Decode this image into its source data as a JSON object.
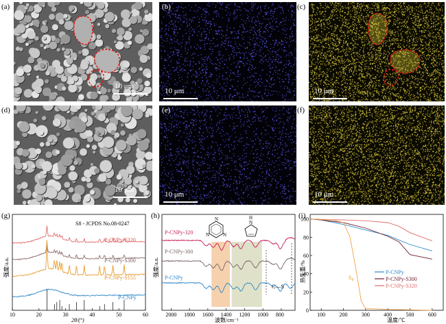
{
  "panel_labels": [
    "(a)",
    "(b)",
    "(c)",
    "(d)",
    "(e)",
    "(f)",
    "(g)",
    "(h)",
    "(i)"
  ],
  "scale_text": "10 μm",
  "colors": {
    "nitrogen_dots": "#5c59f0",
    "sulfur_dots": "#d7c73a",
    "highlight": "#e6140f"
  },
  "chart_data": [
    {
      "type": "line",
      "panel": "(g)",
      "ylabel": "强度/a.u.",
      "xlabel": "2θ/(°)",
      "x_ticks": [
        "10",
        "20",
        "30",
        "40",
        "50",
        "60"
      ],
      "xlim": [
        10,
        60
      ],
      "annotation": "S8 - JCPDS No.08-0247",
      "series": [
        {
          "name": "P-CNPy-S320",
          "color": "#e46a6a"
        },
        {
          "name": "P-CNPy-S300",
          "color": "#8b6a6a"
        },
        {
          "name": "P-CNPy-S155",
          "color": "#e99a2c"
        },
        {
          "name": "P-CNPy",
          "color": "#2b86c8"
        }
      ],
      "reference_peaks_2theta": [
        23.0,
        25.8,
        26.7,
        27.8,
        28.6,
        31.4,
        34.1,
        37.0,
        42.8,
        44.6,
        47.8,
        52.0
      ]
    },
    {
      "type": "line",
      "panel": "(h)",
      "ylabel": "强度/a.u.",
      "xlabel": "波数/cm⁻¹",
      "x_ticks": [
        "2000",
        "1800",
        "1600",
        "1400",
        "1200",
        "1000",
        "800"
      ],
      "xlim": [
        2100,
        650
      ],
      "series": [
        {
          "name": "P-CNPy-320",
          "color": "#c81e5a"
        },
        {
          "name": "P-CNPy-300",
          "color": "#7a6565"
        },
        {
          "name": "P-CNPy",
          "color": "#2b86c8"
        }
      ],
      "annotation": "C—S",
      "bands": [
        {
          "from": 1560,
          "to": 1360,
          "color": "#f5c9a0"
        },
        {
          "from": 1340,
          "to": 1010,
          "color": "#d9dcbf"
        }
      ]
    },
    {
      "type": "line",
      "panel": "(i)",
      "ylabel": "热失重/%",
      "xlabel": "温度/℃",
      "x_ticks": [
        "100",
        "200",
        "300",
        "400",
        "500",
        "600"
      ],
      "y_ticks": [
        "0",
        "20",
        "40",
        "60",
        "80",
        "100"
      ],
      "xlim": [
        50,
        650
      ],
      "ylim": [
        0,
        105
      ],
      "series": [
        {
          "name": "P-CNPy",
          "color": "#2b86c8",
          "x": [
            50,
            100,
            200,
            300,
            400,
            500,
            600
          ],
          "y": [
            100,
            99,
            94,
            88,
            82,
            72,
            65
          ]
        },
        {
          "name": "P-CNPy-S300",
          "color": "#6d1d2b",
          "x": [
            50,
            100,
            200,
            300,
            400,
            450,
            500,
            600
          ],
          "y": [
            100,
            99,
            96,
            90,
            81,
            75,
            61,
            56
          ]
        },
        {
          "name": "P-CNPy-S320",
          "color": "#e46a6a",
          "x": [
            50,
            100,
            200,
            300,
            400,
            450,
            500,
            600
          ],
          "y": [
            100,
            99.5,
            99,
            98,
            96,
            92,
            85,
            76
          ]
        },
        {
          "name": "S8",
          "color": "#f2a24a",
          "x": [
            50,
            100,
            150,
            200,
            230,
            260,
            280,
            300,
            400,
            600
          ],
          "y": [
            100,
            99.5,
            99,
            96,
            80,
            40,
            10,
            2,
            1,
            0
          ]
        }
      ]
    }
  ]
}
